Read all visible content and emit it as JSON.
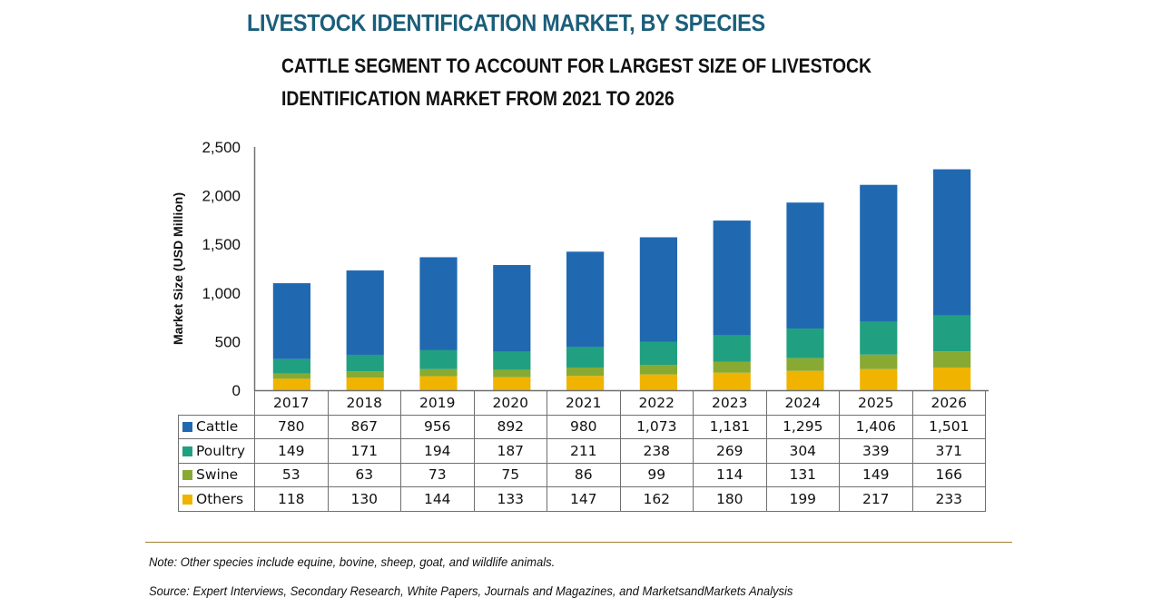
{
  "title": "LIVESTOCK IDENTIFICATION MARKET, BY SPECIES",
  "subtitle_line1": "CATTLE SEGMENT TO ACCOUNT FOR LARGEST SIZE OF LIVESTOCK",
  "subtitle_line2": "IDENTIFICATION MARKET FROM 2021 TO 2026",
  "note": "Note: Other species include equine, bovine, sheep, goat, and wildlife animals.",
  "source": "Source: Expert Interviews, Secondary Research, White Papers, Journals and Magazines, and MarketsandMarkets Analysis",
  "colors": {
    "Cattle": "#2069b0",
    "Poultry": "#20a080",
    "Swine": "#88aa33",
    "Others": "#f0b400"
  },
  "chart_data": {
    "type": "bar",
    "stacked": true,
    "title": "LIVESTOCK IDENTIFICATION MARKET, BY SPECIES",
    "xlabel": "",
    "ylabel": "Market Size (USD Million)",
    "ylim": [
      0,
      2500
    ],
    "yticks": [
      0,
      500,
      1000,
      1500,
      2000,
      2500
    ],
    "ytick_labels": [
      "0",
      "500",
      "1,000",
      "1,500",
      "2,000",
      "2,500"
    ],
    "grid": false,
    "legend": "data-table",
    "categories": [
      "2017",
      "2018",
      "2019",
      "2020",
      "2021",
      "2022",
      "2023",
      "2024",
      "2025",
      "2026"
    ],
    "series": [
      {
        "name": "Others",
        "values": [
          118,
          130,
          144,
          133,
          147,
          162,
          180,
          199,
          217,
          233
        ],
        "labels": [
          "118",
          "130",
          "144",
          "133",
          "147",
          "162",
          "180",
          "199",
          "217",
          "233"
        ]
      },
      {
        "name": "Swine",
        "values": [
          53,
          63,
          73,
          75,
          86,
          99,
          114,
          131,
          149,
          166
        ],
        "labels": [
          "53",
          "63",
          "73",
          "75",
          "86",
          "99",
          "114",
          "131",
          "149",
          "166"
        ]
      },
      {
        "name": "Poultry",
        "values": [
          149,
          171,
          194,
          187,
          211,
          238,
          269,
          304,
          339,
          371
        ],
        "labels": [
          "149",
          "171",
          "194",
          "187",
          "211",
          "238",
          "269",
          "304",
          "339",
          "371"
        ]
      },
      {
        "name": "Cattle",
        "values": [
          780,
          867,
          956,
          892,
          980,
          1073,
          1181,
          1295,
          1406,
          1501
        ],
        "labels": [
          "780",
          "867",
          "956",
          "892",
          "980",
          "1,073",
          "1,181",
          "1,295",
          "1,406",
          "1,501"
        ]
      }
    ],
    "table_row_order": [
      "Cattle",
      "Poultry",
      "Swine",
      "Others"
    ]
  }
}
